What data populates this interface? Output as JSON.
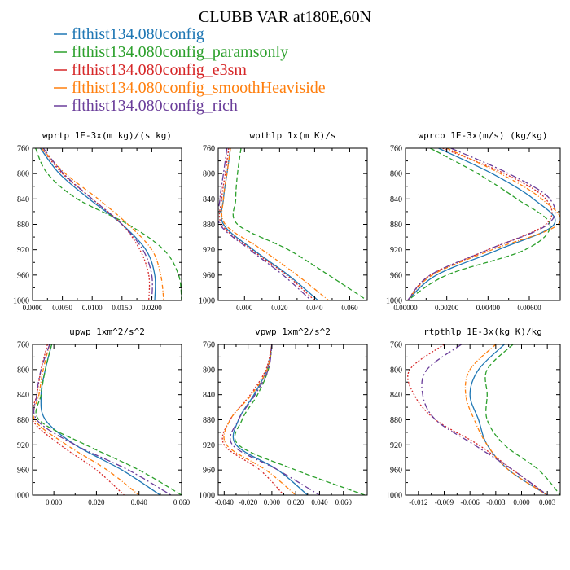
{
  "figure": {
    "title": "CLUBB VAR at180E,60N"
  },
  "legend": [
    {
      "name": "flthist134.080config",
      "color": "#1f77b4"
    },
    {
      "name": "flthist134.080config_paramsonly",
      "color": "#2ca02c"
    },
    {
      "name": "flthist134.080config_e3sm",
      "color": "#d62728"
    },
    {
      "name": "flthist134.080config_smoothHeaviside",
      "color": "#ff7f0e"
    },
    {
      "name": "flthist134.080config_rich",
      "color": "#6a3d9a"
    }
  ],
  "chart_data": [
    {
      "type": "line",
      "title": "wprtp   1E-3x(m kg)/(s kg)",
      "y": [
        760,
        800,
        840,
        880,
        920,
        960,
        1000
      ],
      "ylim": [
        1000,
        760
      ],
      "yticks": [
        760,
        800,
        840,
        880,
        920,
        960,
        1000
      ],
      "xlim": [
        0,
        0.025
      ],
      "xticks": [
        0,
        0.005,
        0.01,
        0.015,
        0.02
      ],
      "xtick_labels": [
        "0.0000",
        "0.0050",
        "0.0100",
        "0.0150",
        "0.0200"
      ],
      "series": [
        {
          "values": [
            0.0013,
            0.0045,
            0.0095,
            0.015,
            0.019,
            0.0205,
            0.0205
          ]
        },
        {
          "values": [
            0.0005,
            0.0025,
            0.0075,
            0.016,
            0.022,
            0.0245,
            0.025
          ]
        },
        {
          "values": [
            0.0015,
            0.005,
            0.01,
            0.015,
            0.018,
            0.0195,
            0.0195
          ]
        },
        {
          "values": [
            0.0015,
            0.0055,
            0.011,
            0.016,
            0.02,
            0.0215,
            0.022
          ]
        },
        {
          "values": [
            0.0018,
            0.0052,
            0.01,
            0.015,
            0.0185,
            0.02,
            0.02
          ]
        }
      ]
    },
    {
      "type": "line",
      "title": "wpthlp   1x(m K)/s",
      "y": [
        760,
        800,
        840,
        880,
        920,
        960,
        1000
      ],
      "ylim": [
        1000,
        760
      ],
      "yticks": [
        760,
        800,
        840,
        880,
        920,
        960,
        1000
      ],
      "xlim": [
        -0.015,
        0.07
      ],
      "xticks": [
        0,
        0.02,
        0.04,
        0.06
      ],
      "xtick_labels": [
        "0.000",
        "0.020",
        "0.040",
        "0.060"
      ],
      "series": [
        {
          "values": [
            -0.008,
            -0.01,
            -0.012,
            -0.012,
            0.005,
            0.025,
            0.042
          ]
        },
        {
          "values": [
            -0.002,
            -0.004,
            -0.005,
            -0.004,
            0.025,
            0.048,
            0.07
          ]
        },
        {
          "values": [
            -0.009,
            -0.011,
            -0.013,
            -0.013,
            0.004,
            0.024,
            0.04
          ]
        },
        {
          "values": [
            -0.008,
            -0.01,
            -0.012,
            -0.011,
            0.01,
            0.03,
            0.048
          ]
        },
        {
          "values": [
            -0.01,
            -0.012,
            -0.014,
            -0.014,
            0.003,
            0.022,
            0.038
          ]
        }
      ]
    },
    {
      "type": "line",
      "title": "wprcp   1E-3x(m/s) (kg/kg)",
      "y": [
        760,
        800,
        840,
        880,
        920,
        960,
        1000
      ],
      "ylim": [
        1000,
        760
      ],
      "yticks": [
        760,
        800,
        840,
        880,
        920,
        960,
        1000
      ],
      "xlim": [
        0,
        0.0075
      ],
      "xticks": [
        0,
        0.002,
        0.004,
        0.006
      ],
      "xtick_labels": [
        "0.00000",
        "0.00200",
        "0.00400",
        "0.00600"
      ],
      "series": [
        {
          "values": [
            0.0016,
            0.0042,
            0.0062,
            0.0072,
            0.0045,
            0.0015,
            0.0001
          ]
        },
        {
          "values": [
            0.0012,
            0.0035,
            0.0054,
            0.007,
            0.0058,
            0.002,
            0.0001
          ]
        },
        {
          "values": [
            0.0018,
            0.0048,
            0.0068,
            0.0068,
            0.004,
            0.0012,
            0.0001
          ]
        },
        {
          "values": [
            0.002,
            0.0046,
            0.0066,
            0.0074,
            0.0042,
            0.0013,
            0.0001
          ]
        },
        {
          "values": [
            0.0022,
            0.005,
            0.007,
            0.0069,
            0.004,
            0.0012,
            0.0001
          ]
        }
      ]
    },
    {
      "type": "line",
      "title": "upwp   1xm^2/s^2",
      "y": [
        760,
        800,
        840,
        880,
        920,
        960,
        1000
      ],
      "ylim": [
        1000,
        760
      ],
      "yticks": [
        760,
        800,
        840,
        880,
        920,
        960,
        1000
      ],
      "xlim": [
        -0.01,
        0.06
      ],
      "xticks": [
        0,
        0.02,
        0.04,
        0.06
      ],
      "xtick_labels": [
        "0.000",
        "0.020",
        "0.040",
        "0.060"
      ],
      "series": [
        {
          "values": [
            -0.001,
            -0.004,
            -0.006,
            -0.004,
            0.01,
            0.032,
            0.05
          ]
        },
        {
          "values": [
            -0.001,
            -0.004,
            -0.006,
            -0.007,
            0.015,
            0.04,
            0.06
          ]
        },
        {
          "values": [
            -0.003,
            -0.006,
            -0.008,
            -0.01,
            0.003,
            0.02,
            0.033
          ]
        },
        {
          "values": [
            -0.002,
            -0.005,
            -0.007,
            -0.009,
            0.006,
            0.025,
            0.04
          ]
        },
        {
          "values": [
            -0.002,
            -0.006,
            -0.008,
            -0.008,
            0.01,
            0.035,
            0.055
          ]
        }
      ]
    },
    {
      "type": "line",
      "title": "vpwp   1xm^2/s^2",
      "y": [
        760,
        800,
        840,
        880,
        920,
        960,
        1000
      ],
      "ylim": [
        1000,
        760
      ],
      "yticks": [
        760,
        800,
        840,
        880,
        920,
        960,
        1000
      ],
      "xlim": [
        -0.045,
        0.08
      ],
      "xticks": [
        -0.04,
        -0.02,
        0,
        0.02,
        0.04,
        0.06
      ],
      "xtick_labels": [
        "-0.040",
        "-0.020",
        "0.000",
        "0.020",
        "0.040",
        "0.060"
      ],
      "series": [
        {
          "values": [
            0.0,
            -0.004,
            -0.015,
            -0.028,
            -0.03,
            0.005,
            0.03
          ]
        },
        {
          "values": [
            0.0,
            -0.003,
            -0.012,
            -0.025,
            -0.028,
            0.02,
            0.078
          ]
        },
        {
          "values": [
            0.0,
            -0.005,
            -0.018,
            -0.035,
            -0.04,
            -0.01,
            0.01
          ]
        },
        {
          "values": [
            0.0,
            -0.004,
            -0.017,
            -0.035,
            -0.038,
            -0.005,
            0.02
          ]
        },
        {
          "values": [
            0.0,
            -0.003,
            -0.014,
            -0.028,
            -0.033,
            0.005,
            0.04
          ]
        }
      ]
    },
    {
      "type": "line",
      "title": "rtpthlp   1E-3x(kg K)/kg",
      "y": [
        760,
        800,
        840,
        880,
        920,
        960,
        1000
      ],
      "ylim": [
        1000,
        760
      ],
      "yticks": [
        760,
        800,
        840,
        880,
        920,
        960,
        1000
      ],
      "xlim": [
        -0.0135,
        0.0045
      ],
      "xticks": [
        -0.012,
        -0.009,
        -0.006,
        -0.003,
        0,
        0.003
      ],
      "xtick_labels": [
        "-0.012",
        "-0.009",
        "-0.006",
        "-0.003",
        "0.000",
        "0.003"
      ],
      "series": [
        {
          "values": [
            -0.002,
            -0.005,
            -0.006,
            -0.005,
            -0.004,
            -0.0015,
            0.003
          ]
        },
        {
          "values": [
            -0.001,
            -0.004,
            -0.004,
            -0.004,
            -0.002,
            0.002,
            0.0045
          ]
        },
        {
          "values": [
            -0.009,
            -0.013,
            -0.0125,
            -0.01,
            -0.005,
            -0.001,
            0.003
          ]
        },
        {
          "values": [
            -0.003,
            -0.006,
            -0.0065,
            -0.0055,
            -0.004,
            -0.0015,
            0.003
          ]
        },
        {
          "values": [
            -0.007,
            -0.011,
            -0.0115,
            -0.01,
            -0.0055,
            -0.001,
            0.003
          ]
        }
      ]
    }
  ]
}
